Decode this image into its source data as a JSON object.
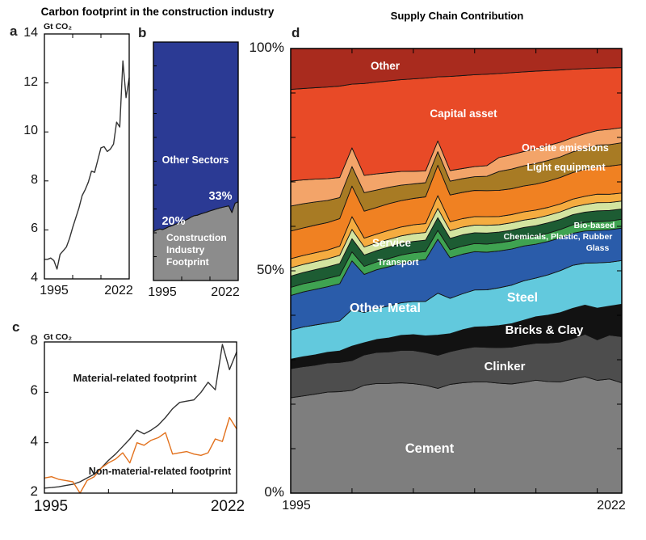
{
  "titles": {
    "left": "Carbon footprint in the construction industry",
    "right": "Supply Chain Contribution"
  },
  "chart_data": [
    {
      "id": "a",
      "type": "line",
      "panel_label": "a",
      "unit": "Gt CO₂",
      "x_start": 1995,
      "x_end": 2022,
      "ylim": [
        4,
        14
      ],
      "yticks": [
        4,
        6,
        8,
        10,
        12,
        14
      ],
      "xtick_labels": [
        "1995",
        "2022"
      ],
      "xticks_interior": [
        2004,
        2013
      ],
      "line_color": "#333333",
      "values": [
        4.8,
        4.8,
        4.85,
        4.75,
        4.4,
        5.0,
        5.15,
        5.3,
        5.65,
        6.1,
        6.5,
        6.9,
        7.4,
        7.65,
        7.95,
        8.4,
        8.35,
        8.85,
        9.35,
        9.4,
        9.2,
        9.3,
        9.5,
        10.4,
        10.2,
        12.9,
        11.4,
        12.2
      ]
    },
    {
      "id": "b",
      "type": "stacked-area",
      "panel_label": "b",
      "x_start": 1995,
      "x_end": 2022,
      "ylim": [
        0,
        100
      ],
      "xtick_labels": [
        "1995",
        "2022"
      ],
      "xticks_interior": [
        2004,
        2013
      ],
      "yticks_interior": [
        10,
        20,
        30,
        40,
        50,
        60,
        70,
        80,
        90
      ],
      "annotations": {
        "start_share": "20%",
        "end_share": "33%"
      },
      "series": [
        {
          "name": "Construction Industry Footprint",
          "color": "#8C8C8C",
          "values": [
            20.5,
            21.2,
            21.6,
            21.4,
            22.0,
            22.6,
            23.0,
            23.6,
            24.0,
            24.6,
            25.2,
            25.8,
            26.6,
            27.2,
            27.4,
            27.9,
            28.3,
            28.7,
            29.2,
            29.6,
            30.0,
            30.4,
            30.7,
            31.0,
            31.3,
            28.5,
            32.4,
            33.0
          ]
        },
        {
          "name": "Other Sectors",
          "color": "#2B3A94",
          "complement_to": 100
        }
      ]
    },
    {
      "id": "c",
      "type": "line",
      "panel_label": "c",
      "unit": "Gt CO₂",
      "x_start": 1995,
      "x_end": 2022,
      "ylim": [
        2,
        8
      ],
      "yticks": [
        2,
        4,
        6,
        8
      ],
      "xtick_labels": [
        "1995",
        "2022"
      ],
      "xticks_interior": [
        2004,
        2013
      ],
      "series": [
        {
          "name": "Material-related footprint",
          "color": "#333333",
          "values": [
            2.2,
            2.22,
            2.25,
            2.3,
            2.35,
            2.45,
            2.6,
            2.75,
            3.0,
            3.3,
            3.55,
            3.85,
            4.15,
            4.5,
            4.35,
            4.5,
            4.7,
            5.0,
            5.35,
            5.6,
            5.65,
            5.7,
            6.0,
            6.4,
            6.1,
            7.9,
            6.9,
            7.6
          ]
        },
        {
          "name": "Non-material-related footprint",
          "color": "#E2711D",
          "values": [
            2.6,
            2.65,
            2.55,
            2.5,
            2.45,
            2.0,
            2.5,
            2.65,
            3.0,
            3.2,
            3.35,
            3.6,
            3.2,
            4.0,
            3.9,
            4.1,
            4.2,
            4.4,
            3.55,
            3.6,
            3.65,
            3.55,
            3.5,
            3.6,
            4.15,
            4.05,
            5.0,
            4.55
          ]
        }
      ]
    },
    {
      "id": "d",
      "type": "stacked-area",
      "panel_label": "d",
      "x_start": 1995,
      "x_end": 2022,
      "ylim": [
        0,
        100
      ],
      "ytick_values": [
        100,
        50,
        0
      ],
      "ytick_labels": [
        "100%",
        "50%",
        "0%"
      ],
      "yticks_interior": [
        10,
        20,
        30,
        40,
        50,
        60,
        70,
        80,
        90
      ],
      "xtick_labels": [
        "1995",
        "2022"
      ],
      "xticks_interior": [
        2000,
        2005,
        2010,
        2015,
        2020
      ],
      "layers": [
        {
          "name": "Cement",
          "color": "#7E7E7E",
          "values": [
            21.0,
            21.6,
            22.2,
            22.8,
            23.2,
            24.2,
            25.6,
            26.4,
            26.8,
            27.2,
            27.0,
            26.6,
            26.2,
            26.8,
            27.3,
            27.6,
            27.2,
            26.8,
            26.6,
            27.0,
            27.4,
            26.8,
            26.5,
            27.0,
            27.2,
            26.4,
            26.0,
            24.8
          ]
        },
        {
          "name": "Clinker",
          "color": "#4D4D4D",
          "values": [
            6.4,
            6.5,
            6.5,
            6.6,
            6.7,
            7.0,
            7.2,
            7.5,
            7.7,
            8.0,
            8.2,
            8.1,
            8.3,
            8.1,
            8.4,
            8.7,
            8.5,
            8.7,
            9.0,
            9.1,
            9.0,
            9.3,
            9.5,
            9.6,
            9.9,
            9.5,
            10.0,
            10.4
          ]
        },
        {
          "name": "Bricks & Clay",
          "color": "#121212",
          "values": [
            2.1,
            2.2,
            2.3,
            2.4,
            2.6,
            3.4,
            2.9,
            3.1,
            3.4,
            3.7,
            3.9,
            4.1,
            5.0,
            4.4,
            4.7,
            4.9,
            5.1,
            5.4,
            5.7,
            6.0,
            6.4,
            6.7,
            7.0,
            7.2,
            6.8,
            7.4,
            6.6,
            7.3
          ]
        },
        {
          "name": "Steel",
          "color": "#62C9DD",
          "values": [
            6.4,
            6.6,
            6.7,
            6.6,
            6.9,
            8.6,
            7.2,
            7.5,
            7.8,
            8.0,
            8.2,
            8.5,
            10.5,
            8.7,
            8.9,
            9.2,
            9.0,
            9.2,
            9.4,
            9.6,
            9.4,
            9.7,
            10.0,
            10.2,
            9.8,
            10.6,
            10.0,
            9.8
          ]
        },
        {
          "name": "Other Metal",
          "color": "#2A5CAA",
          "values": [
            7.6,
            7.8,
            8.0,
            8.2,
            8.5,
            11.5,
            9.0,
            9.3,
            9.6,
            9.8,
            10.0,
            10.3,
            13.5,
            10.0,
            9.8,
            9.5,
            9.2,
            9.0,
            8.8,
            8.5,
            8.2,
            8.0,
            7.8,
            7.6,
            7.5,
            7.6,
            7.4,
            7.3
          ]
        },
        {
          "name": "Glass",
          "color": "#3FA351",
          "values": [
            1.8,
            1.8,
            1.8,
            1.9,
            1.9,
            2.1,
            1.9,
            1.9,
            2.0,
            2.0,
            2.0,
            2.0,
            2.2,
            2.0,
            2.0,
            2.0,
            2.0,
            2.0,
            2.0,
            2.0,
            2.0,
            2.0,
            2.0,
            2.0,
            2.0,
            2.1,
            2.0,
            2.0
          ]
        },
        {
          "name": "Chemicals, Plastic, Rubber",
          "color": "#1D5C33",
          "values": [
            2.5,
            2.5,
            2.6,
            2.6,
            2.7,
            3.1,
            2.7,
            2.7,
            2.8,
            2.8,
            2.8,
            2.8,
            3.2,
            2.8,
            2.8,
            2.7,
            2.7,
            2.6,
            2.6,
            2.5,
            2.5,
            2.5,
            2.4,
            2.4,
            2.4,
            2.5,
            2.4,
            2.3
          ]
        },
        {
          "name": "Bio-based",
          "color": "#D3E4A0",
          "values": [
            1.8,
            1.8,
            1.8,
            1.8,
            1.9,
            2.2,
            1.9,
            1.9,
            1.9,
            1.9,
            1.9,
            1.9,
            2.3,
            1.9,
            1.9,
            1.9,
            1.9,
            1.8,
            1.8,
            1.8,
            1.8,
            1.8,
            1.8,
            1.8,
            1.8,
            1.9,
            1.8,
            1.8
          ]
        },
        {
          "name": "Transport",
          "color": "#F5AC40",
          "values": [
            2.0,
            2.0,
            2.0,
            2.0,
            2.1,
            3.0,
            2.1,
            2.1,
            2.2,
            2.2,
            2.2,
            2.2,
            3.2,
            2.2,
            2.1,
            2.1,
            2.1,
            2.0,
            2.0,
            2.0,
            2.0,
            1.9,
            1.9,
            1.9,
            1.9,
            2.0,
            1.9,
            1.8
          ]
        },
        {
          "name": "Service",
          "color": "#F08122",
          "values": [
            6.1,
            6.1,
            6.2,
            6.2,
            6.3,
            7.2,
            6.4,
            6.4,
            6.5,
            6.5,
            6.5,
            6.6,
            7.6,
            6.6,
            6.5,
            6.5,
            6.4,
            6.4,
            6.3,
            6.3,
            6.3,
            6.3,
            6.3,
            6.3,
            6.3,
            6.5,
            6.4,
            6.4
          ]
        },
        {
          "name": "Light equipment",
          "color": "#A87B24",
          "values": [
            5.5,
            5.4,
            5.2,
            5.0,
            4.8,
            4.6,
            4.4,
            4.2,
            4.0,
            3.8,
            3.6,
            3.5,
            3.4,
            3.4,
            3.4,
            3.4,
            3.5,
            4.6,
            4.8,
            4.9,
            5.0,
            5.0,
            4.9,
            4.9,
            4.8,
            5.0,
            4.9,
            4.9
          ]
        },
        {
          "name": "On-site emissions",
          "color": "#F3A469",
          "values": [
            5.5,
            5.3,
            5.1,
            4.9,
            4.6,
            4.4,
            4.1,
            3.9,
            3.6,
            3.4,
            3.1,
            2.9,
            2.7,
            2.6,
            2.5,
            2.5,
            2.6,
            3.4,
            3.5,
            3.5,
            3.6,
            3.6,
            3.5,
            3.4,
            3.5,
            3.4,
            3.5,
            3.4
          ]
        },
        {
          "name": "Capital asset",
          "color": "#E84A27",
          "values": [
            20.2,
            20.3,
            20.5,
            20.7,
            20.9,
            15.0,
            21.8,
            22.1,
            22.4,
            22.6,
            22.8,
            22.9,
            16.0,
            23.2,
            23.0,
            22.8,
            22.4,
            20.5,
            20.0,
            19.4,
            18.8,
            18.0,
            17.2,
            16.2,
            15.2,
            14.6,
            14.0,
            13.5
          ]
        },
        {
          "name": "Other",
          "color": "#A92B1E",
          "values": [
            9.0,
            8.9,
            8.8,
            8.7,
            8.6,
            8.4,
            8.3,
            8.1,
            7.9,
            7.7,
            7.5,
            7.3,
            7.1,
            6.9,
            6.7,
            6.5,
            6.3,
            6.1,
            5.9,
            5.7,
            5.5,
            5.3,
            5.1,
            4.9,
            4.7,
            4.6,
            4.4,
            4.3
          ]
        }
      ]
    }
  ]
}
